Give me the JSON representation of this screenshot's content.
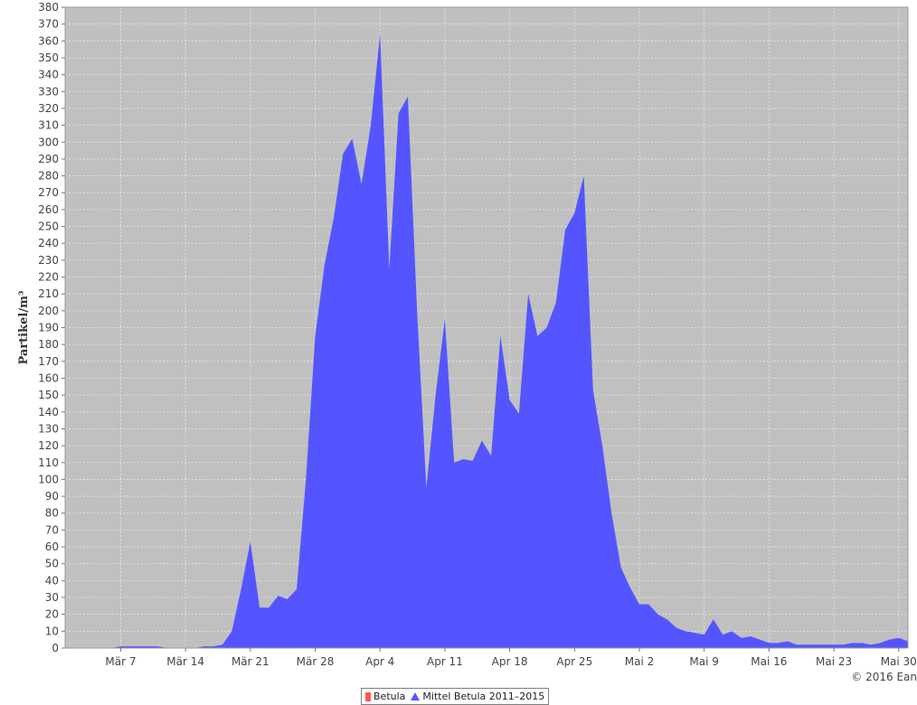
{
  "colors": {
    "plot_bg": "#c0c0c0",
    "grid": "#e8e8e8",
    "area_fill": "#5555ff",
    "betula": "#ff5555"
  },
  "copyright": "© 2016 Ean",
  "legend": {
    "items": [
      {
        "label": "Betula",
        "color": "#ff5555",
        "symbol": "bar"
      },
      {
        "label": "Mittel Betula 2011–2015",
        "color": "#5555ff",
        "symbol": "triangle"
      }
    ]
  },
  "chart_data": {
    "type": "area",
    "ylabel": "Partikel/m³",
    "ylim": [
      0,
      380
    ],
    "y_tick_step": 10,
    "x_range": [
      "2016-03-01",
      "2016-05-31"
    ],
    "x_ticks": [
      {
        "date": "2016-03-07",
        "label": "Mär 7"
      },
      {
        "date": "2016-03-14",
        "label": "Mär 14"
      },
      {
        "date": "2016-03-21",
        "label": "Mär 21"
      },
      {
        "date": "2016-03-28",
        "label": "Mär 28"
      },
      {
        "date": "2016-04-04",
        "label": "Apr 4"
      },
      {
        "date": "2016-04-11",
        "label": "Apr 11"
      },
      {
        "date": "2016-04-18",
        "label": "Apr 18"
      },
      {
        "date": "2016-04-25",
        "label": "Apr 25"
      },
      {
        "date": "2016-05-02",
        "label": "Mai 2"
      },
      {
        "date": "2016-05-09",
        "label": "Mai 9"
      },
      {
        "date": "2016-05-16",
        "label": "Mai 16"
      },
      {
        "date": "2016-05-23",
        "label": "Mai 23"
      },
      {
        "date": "2016-05-30",
        "label": "Mai 30"
      }
    ],
    "grid": true,
    "legend_position": "bottom",
    "series": [
      {
        "name": "Mittel Betula 2011–2015",
        "x": [
          "2016-03-01",
          "2016-03-02",
          "2016-03-03",
          "2016-03-04",
          "2016-03-05",
          "2016-03-06",
          "2016-03-07",
          "2016-03-08",
          "2016-03-09",
          "2016-03-10",
          "2016-03-11",
          "2016-03-12",
          "2016-03-13",
          "2016-03-14",
          "2016-03-15",
          "2016-03-16",
          "2016-03-17",
          "2016-03-18",
          "2016-03-19",
          "2016-03-20",
          "2016-03-21",
          "2016-03-22",
          "2016-03-23",
          "2016-03-24",
          "2016-03-25",
          "2016-03-26",
          "2016-03-27",
          "2016-03-28",
          "2016-03-29",
          "2016-03-30",
          "2016-03-31",
          "2016-04-01",
          "2016-04-02",
          "2016-04-03",
          "2016-04-04",
          "2016-04-05",
          "2016-04-06",
          "2016-04-07",
          "2016-04-08",
          "2016-04-09",
          "2016-04-10",
          "2016-04-11",
          "2016-04-12",
          "2016-04-13",
          "2016-04-14",
          "2016-04-15",
          "2016-04-16",
          "2016-04-17",
          "2016-04-18",
          "2016-04-19",
          "2016-04-20",
          "2016-04-21",
          "2016-04-22",
          "2016-04-23",
          "2016-04-24",
          "2016-04-25",
          "2016-04-26",
          "2016-04-27",
          "2016-04-28",
          "2016-04-29",
          "2016-04-30",
          "2016-05-01",
          "2016-05-02",
          "2016-05-03",
          "2016-05-04",
          "2016-05-05",
          "2016-05-06",
          "2016-05-07",
          "2016-05-08",
          "2016-05-09",
          "2016-05-10",
          "2016-05-11",
          "2016-05-12",
          "2016-05-13",
          "2016-05-14",
          "2016-05-15",
          "2016-05-16",
          "2016-05-17",
          "2016-05-18",
          "2016-05-19",
          "2016-05-20",
          "2016-05-21",
          "2016-05-22",
          "2016-05-23",
          "2016-05-24",
          "2016-05-25",
          "2016-05-26",
          "2016-05-27",
          "2016-05-28",
          "2016-05-29",
          "2016-05-30",
          "2016-05-31"
        ],
        "values": [
          0,
          0,
          0,
          0,
          0,
          0,
          1,
          1,
          1,
          1,
          1,
          0,
          0,
          0,
          0,
          1,
          1,
          2,
          10,
          35,
          63,
          24,
          24,
          31,
          29,
          35,
          100,
          185,
          227,
          255,
          293,
          302,
          275,
          310,
          364,
          225,
          317,
          327,
          200,
          95,
          150,
          195,
          110,
          112,
          111,
          123,
          114,
          185,
          147,
          139,
          210,
          185,
          190,
          205,
          248,
          258,
          280,
          153,
          120,
          80,
          48,
          36,
          26,
          26,
          20,
          17,
          12,
          10,
          9,
          8,
          17,
          8,
          10,
          6,
          7,
          5,
          3,
          3,
          4,
          2,
          2,
          2,
          2,
          2,
          2,
          3,
          3,
          2,
          3,
          5,
          6,
          4
        ]
      }
    ]
  }
}
